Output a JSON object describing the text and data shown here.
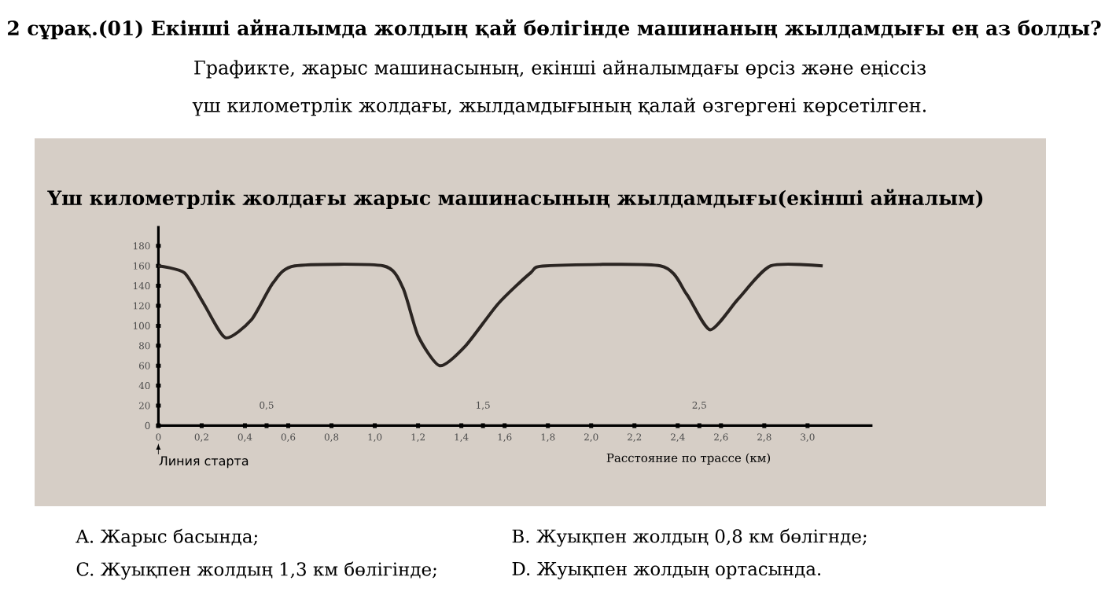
{
  "chart_data": {
    "type": "line",
    "title": "2 сұрақ.(01) Екінші айналымда жолдың қай бөлігінде машинаның жылдамдығы ең аз болды?",
    "subtitle": "Графикте, жарыс машинасының, екінші айналымдағы өрсіз және еңіссіз үш километрлік жолдағы, жылдамдығының қалай өзгергені көрсетілген.",
    "xlabel": "Расстояние по трассе (км)",
    "annotations": [
      "Үш километрлік жолдағы жарыс машинасының жылдамдығы(екінші айналым)",
      "Линия старта",
      "A.  Жарыс басында;",
      "B. Жуықпен жолдың 0,8 км бөлігнде;",
      "C. Жуықпен жолдың 1,3 км бөлігінде;",
      "D. Жуықпен жолдың ортасында."
    ],
    "x": [
      0,
      0.12,
      0.21,
      0.31,
      0.43,
      0.53,
      0.63,
      1.04,
      1.13,
      1.2,
      1.3,
      1.42,
      1.57,
      1.72,
      1.79,
      2.32,
      2.44,
      2.55,
      2.68,
      2.83,
      3.07
    ],
    "values": [
      160,
      153,
      122,
      88,
      106,
      143,
      160,
      160,
      138,
      90,
      60,
      80,
      122,
      153,
      160,
      160,
      132,
      96,
      127,
      160,
      160
    ],
    "color": "#2b2522",
    "marker": "none",
    "line_style": "solid",
    "xlim": [
      0,
      3.3
    ],
    "xticks": [
      0,
      {
        "value": 0.2,
        "label": "0,2"
      },
      {
        "value": 0.4,
        "label": "0,4"
      },
      {
        "value": 0.6,
        "label": "0,6"
      },
      {
        "value": 0.8,
        "label": "0,8"
      },
      {
        "value": 1.0,
        "label": "1,0"
      },
      {
        "value": 1.2,
        "label": "1,2"
      },
      {
        "value": 1.4,
        "label": "1,4"
      },
      {
        "value": 1.6,
        "label": "1,6"
      },
      {
        "value": 1.8,
        "label": "1,8"
      },
      {
        "value": 2.0,
        "label": "2,0"
      },
      {
        "value": 2.2,
        "label": "2,2"
      },
      {
        "value": 2.4,
        "label": "2,4"
      },
      {
        "value": 2.6,
        "label": "2,6"
      },
      {
        "value": 2.8,
        "label": "2,8"
      },
      {
        "value": 3.0,
        "label": "3,0"
      }
    ],
    "x2lim": [
      0,
      3.3
    ],
    "x2ticks": [
      {
        "value": 0.5,
        "label": "0,5"
      },
      {
        "value": 1.5,
        "label": "1,5"
      },
      {
        "value": 2.5,
        "label": "2,5"
      }
    ],
    "ylim": [
      0,
      200
    ],
    "yticks": [
      0,
      20,
      40,
      60,
      80,
      100,
      120,
      140,
      160,
      180
    ],
    "grid": false
  }
}
